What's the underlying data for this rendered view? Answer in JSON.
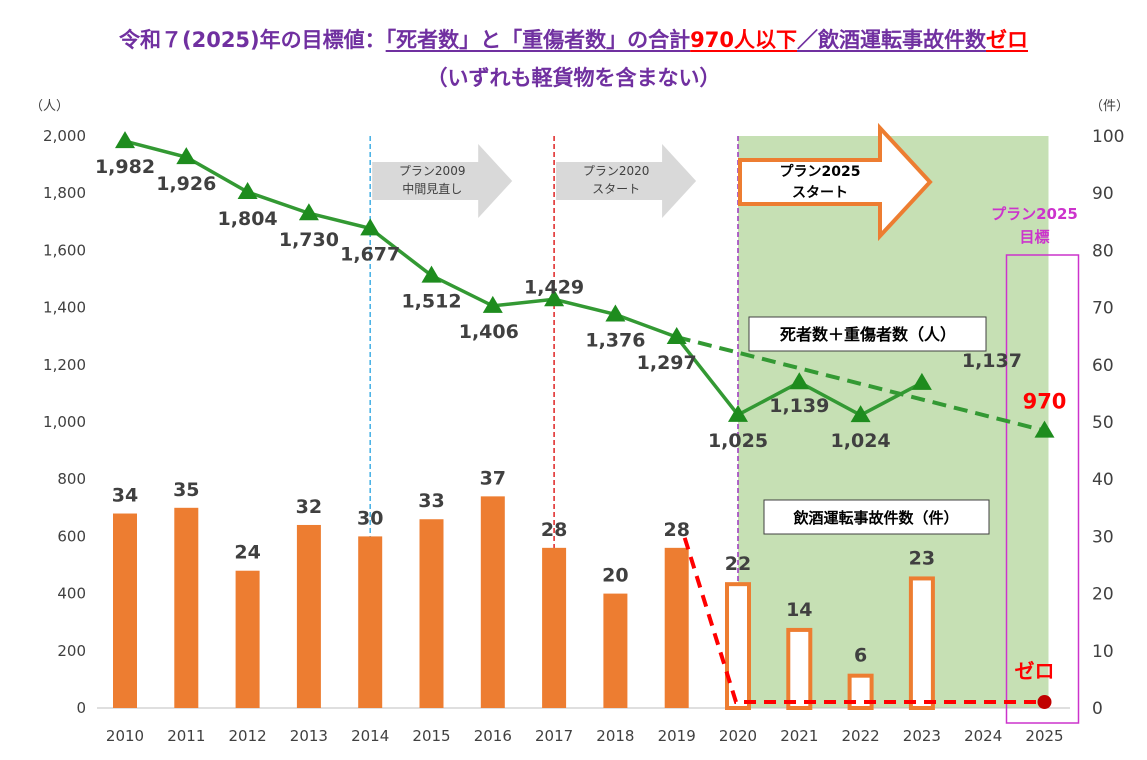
{
  "title": {
    "pre": "令和７(2025)年の目標値：",
    "deaths": "「死者数」と「重傷者数」の合計",
    "target": "970人以下",
    "slash": "／",
    "drunk": "飲酒運転事故件数",
    "zero": "ゼロ",
    "subtitle": "（いずれも軽貨物を含まない）"
  },
  "chart_data": {
    "type": "bar+line",
    "x": [
      "2010",
      "2011",
      "2012",
      "2013",
      "2014",
      "2015",
      "2016",
      "2017",
      "2018",
      "2019",
      "2020",
      "2021",
      "2022",
      "2023",
      "2024",
      "2025"
    ],
    "y_left": {
      "unit_label": "（人）",
      "min": 0,
      "max": 2000,
      "ticks": [
        0,
        200,
        400,
        600,
        800,
        1000,
        1200,
        1400,
        1600,
        1800,
        2000
      ]
    },
    "y_right": {
      "unit_label": "（件）",
      "min": 0,
      "max": 100,
      "ticks": [
        0,
        10,
        20,
        30,
        40,
        50,
        60,
        70,
        80,
        90,
        100
      ]
    },
    "line_series": {
      "name": "死者数＋重傷者数（人）",
      "axis": "left",
      "color": "#339933",
      "values": [
        1982,
        1926,
        1804,
        1730,
        1677,
        1512,
        1406,
        1429,
        1376,
        1297,
        1025,
        1139,
        1024,
        1137,
        null,
        null
      ],
      "labels": [
        "1,982",
        "1,926",
        "1,804",
        "1,730",
        "1,677",
        "1,512",
        "1,406",
        "1,429",
        "1,376",
        "1,297",
        "1,025",
        "1,139",
        "1,024",
        "1,137",
        "",
        ""
      ]
    },
    "line_target": {
      "from_year": "2019",
      "from_value": 1297,
      "to_year": "2025",
      "to_value": 970,
      "label": "970",
      "style": "dashed"
    },
    "bar_series": {
      "name": "飲酒運転事故件数（件）",
      "axis": "right",
      "color": "#ed7d31",
      "values": [
        34,
        35,
        24,
        32,
        30,
        33,
        37,
        28,
        20,
        28,
        22,
        14,
        6,
        23,
        null,
        null
      ],
      "hollow_from_year": "2020"
    },
    "bar_target": {
      "from_year": "2019",
      "from_value": 28,
      "to_year": "2025",
      "to_value": 0,
      "label": "ゼロ",
      "color": "#ff0000",
      "style": "dashed"
    },
    "vertical_markers": [
      {
        "year": "2014",
        "color": "#4db3e6"
      },
      {
        "year": "2017",
        "color": "#e03030"
      },
      {
        "year": "2020",
        "color": "#a040c0"
      }
    ],
    "plan_arrows": [
      {
        "year": "2014",
        "text": [
          "プラン2009",
          "中間見直し"
        ],
        "style": "gray"
      },
      {
        "year": "2017",
        "text": [
          "プラン2020",
          "スタート"
        ],
        "style": "gray"
      },
      {
        "year": "2020",
        "text": [
          "プラン2025",
          "スタート"
        ],
        "style": "orange"
      }
    ],
    "shaded_period": {
      "from_year": "2020",
      "to_year": "2025",
      "color": "#c6e0b4"
    },
    "goal_box": {
      "year": "2025",
      "text": [
        "プラン2025",
        "目標"
      ],
      "color": "#cc33cc"
    },
    "grid": false
  }
}
